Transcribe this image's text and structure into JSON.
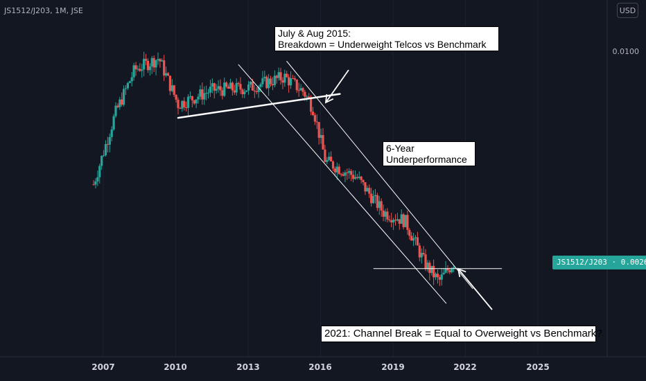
{
  "header": {
    "symbol": "JS1512/J203, 1M, JSE",
    "currency": "USD"
  },
  "price_axis": {
    "tick_label": "0.0100",
    "last_price_badge": "JS1512/J203 · 0.0026"
  },
  "annotations": {
    "breakdown_line1": "July & Aug 2015:",
    "breakdown_line2": "Breakdown = Underweight Telcos vs Benchmark",
    "underperf_line1": "6-Year",
    "underperf_line2": "Underperformance",
    "channel_break": "2021: Channel Break = Equal to Overweight vs Benchmark?"
  },
  "colors": {
    "background": "#131722",
    "up": "#26a69a",
    "down": "#ef5350",
    "lines": "#ffffff",
    "badge": "#26a69a"
  },
  "chart_data": {
    "type": "candlestick",
    "title": "JS1512/J203, 1M, JSE",
    "x_tick_labels": [
      "2007",
      "2010",
      "2013",
      "2016",
      "2019",
      "2022",
      "2025"
    ],
    "x_range": [
      2005.5,
      2029.4
    ],
    "y_scale": "log",
    "y_tick_labels": [
      "0.0100"
    ],
    "last_price": 0.0026,
    "key_points": [
      {
        "date": 2006.6,
        "price": 0.0043
      },
      {
        "date": 2007.5,
        "price": 0.0068
      },
      {
        "date": 2008.3,
        "price": 0.009
      },
      {
        "date": 2009.3,
        "price": 0.0097
      },
      {
        "date": 2010.1,
        "price": 0.0072
      },
      {
        "date": 2011.5,
        "price": 0.0079
      },
      {
        "date": 2013.0,
        "price": 0.008
      },
      {
        "date": 2014.5,
        "price": 0.0086
      },
      {
        "date": 2015.3,
        "price": 0.0078
      },
      {
        "date": 2015.7,
        "price": 0.007
      },
      {
        "date": 2016.2,
        "price": 0.005
      },
      {
        "date": 2017.5,
        "price": 0.0045
      },
      {
        "date": 2018.6,
        "price": 0.0036
      },
      {
        "date": 2019.5,
        "price": 0.0034
      },
      {
        "date": 2020.3,
        "price": 0.0026
      },
      {
        "date": 2020.9,
        "price": 0.0023
      },
      {
        "date": 2021.5,
        "price": 0.0026
      }
    ],
    "trendlines": [
      {
        "name": "support",
        "from": {
          "date": 2010.1,
          "price": 0.0066
        },
        "to": {
          "date": 2016.8,
          "price": 0.0077
        }
      },
      {
        "name": "channel-upper",
        "from": {
          "date": 2014.6,
          "price": 0.0095
        },
        "to": {
          "date": 2022.3,
          "price": 0.0022
        }
      },
      {
        "name": "channel-lower",
        "from": {
          "date": 2012.6,
          "price": 0.0093
        },
        "to": {
          "date": 2021.2,
          "price": 0.002
        }
      },
      {
        "name": "horizontal",
        "from": {
          "date": 2018.2,
          "price": 0.0025
        },
        "to": {
          "date": 2023.5,
          "price": 0.0025
        }
      }
    ]
  }
}
